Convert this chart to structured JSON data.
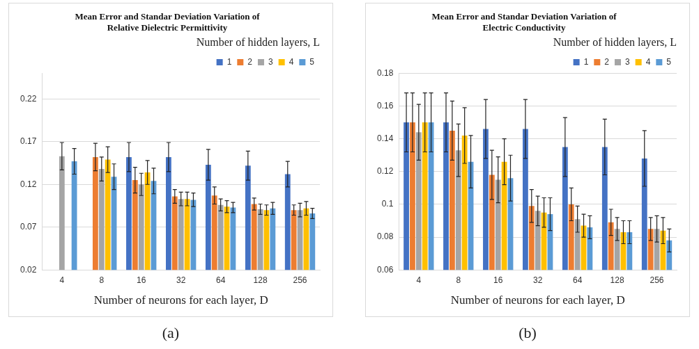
{
  "chart_data": [
    {
      "type": "bar",
      "title": "Mean Error and Standar Deviation Variation of\nRelative Dielectric Permittivity",
      "xlabel": "Number of neurons for each layer, D",
      "legend_title": "Number of hidden layers, L",
      "annotations": [
        "(a)"
      ],
      "categories": [
        "4",
        "8",
        "16",
        "32",
        "64",
        "128",
        "256"
      ],
      "series": [
        {
          "name": "1",
          "color": "#4472c4",
          "values": [
            null,
            null,
            0.152,
            0.152,
            0.143,
            0.142,
            0.132
          ],
          "errors": [
            null,
            null,
            0.017,
            0.017,
            0.018,
            0.017,
            0.015
          ]
        },
        {
          "name": "2",
          "color": "#ed7d31",
          "values": [
            null,
            0.152,
            0.125,
            0.106,
            0.107,
            0.097,
            0.09
          ],
          "errors": [
            null,
            0.016,
            0.015,
            0.008,
            0.01,
            0.007,
            0.006
          ]
        },
        {
          "name": "3",
          "color": "#a5a5a5",
          "values": [
            0.153,
            0.138,
            0.12,
            0.103,
            0.096,
            0.091,
            0.09
          ],
          "errors": [
            0.016,
            0.014,
            0.013,
            0.008,
            0.007,
            0.006,
            0.008
          ]
        },
        {
          "name": "4",
          "color": "#ffc000",
          "values": [
            null,
            0.149,
            0.134,
            0.103,
            0.094,
            0.09,
            0.092
          ],
          "errors": [
            null,
            0.015,
            0.014,
            0.008,
            0.007,
            0.006,
            0.008
          ]
        },
        {
          "name": "5",
          "color": "#5b9bd5",
          "values": [
            0.147,
            0.129,
            0.124,
            0.102,
            0.093,
            0.092,
            0.086
          ],
          "errors": [
            0.015,
            0.015,
            0.015,
            0.008,
            0.006,
            0.007,
            0.006
          ]
        }
      ],
      "ylim": [
        0.02,
        0.25
      ],
      "yticks": [
        0.02,
        0.07,
        0.12,
        0.17,
        0.22
      ],
      "grid": "y",
      "legend": "top right"
    },
    {
      "type": "bar",
      "title": "Mean Error and Standar Deviation Variation of\nElectric Conductivity",
      "xlabel": "Number of neurons for each layer, D",
      "legend_title": "Number of hidden layers, L",
      "annotations": [
        "(b)"
      ],
      "categories": [
        "4",
        "8",
        "16",
        "32",
        "64",
        "128",
        "256"
      ],
      "series": [
        {
          "name": "1",
          "color": "#4472c4",
          "values": [
            0.15,
            0.15,
            0.146,
            0.146,
            0.135,
            0.135,
            0.128
          ],
          "errors": [
            0.018,
            0.018,
            0.018,
            0.018,
            0.018,
            0.017,
            0.017
          ]
        },
        {
          "name": "2",
          "color": "#ed7d31",
          "values": [
            0.15,
            0.145,
            0.118,
            0.099,
            0.1,
            0.089,
            0.085
          ],
          "errors": [
            0.018,
            0.018,
            0.015,
            0.01,
            0.01,
            0.008,
            0.007
          ]
        },
        {
          "name": "3",
          "color": "#a5a5a5",
          "values": [
            0.144,
            0.133,
            0.115,
            0.096,
            0.091,
            0.085,
            0.085
          ],
          "errors": [
            0.017,
            0.016,
            0.014,
            0.009,
            0.008,
            0.007,
            0.008
          ]
        },
        {
          "name": "4",
          "color": "#ffc000",
          "values": [
            0.15,
            0.142,
            0.126,
            0.095,
            0.087,
            0.083,
            0.084
          ],
          "errors": [
            0.018,
            0.017,
            0.014,
            0.009,
            0.007,
            0.007,
            0.008
          ]
        },
        {
          "name": "5",
          "color": "#5b9bd5",
          "values": [
            0.15,
            0.126,
            0.116,
            0.094,
            0.086,
            0.083,
            0.078
          ],
          "errors": [
            0.018,
            0.016,
            0.014,
            0.01,
            0.007,
            0.007,
            0.007
          ]
        }
      ],
      "ylim": [
        0.06,
        0.18
      ],
      "yticks": [
        0.06,
        0.08,
        0.1,
        0.12,
        0.14,
        0.16,
        0.18
      ],
      "grid": "y",
      "legend": "top right"
    }
  ]
}
